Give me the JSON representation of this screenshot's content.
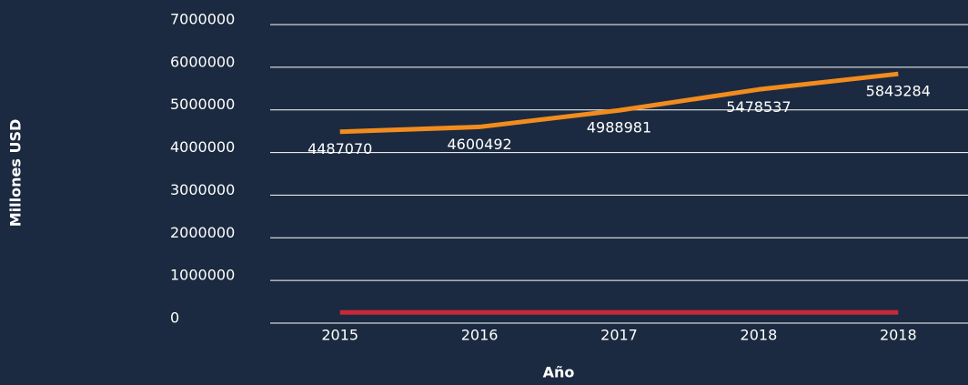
{
  "chart_data": {
    "type": "line",
    "x_label": "Año",
    "y_label": "Millones USD",
    "categories": [
      "2015",
      "2016",
      "2017",
      "2018",
      "2018"
    ],
    "series": [
      {
        "color": "#f28c1e",
        "values": [
          4487070,
          4600492,
          4988981,
          5478537,
          5843284
        ],
        "data_labels": true
      },
      {
        "color": "#c9283a",
        "values": [
          250000,
          250000,
          250000,
          250000,
          250000
        ],
        "data_labels": false
      }
    ],
    "ylim": [
      0,
      7000000
    ],
    "yticks": [
      0,
      1000000,
      2000000,
      3000000,
      4000000,
      5000000,
      6000000,
      7000000
    ],
    "grid": true
  }
}
